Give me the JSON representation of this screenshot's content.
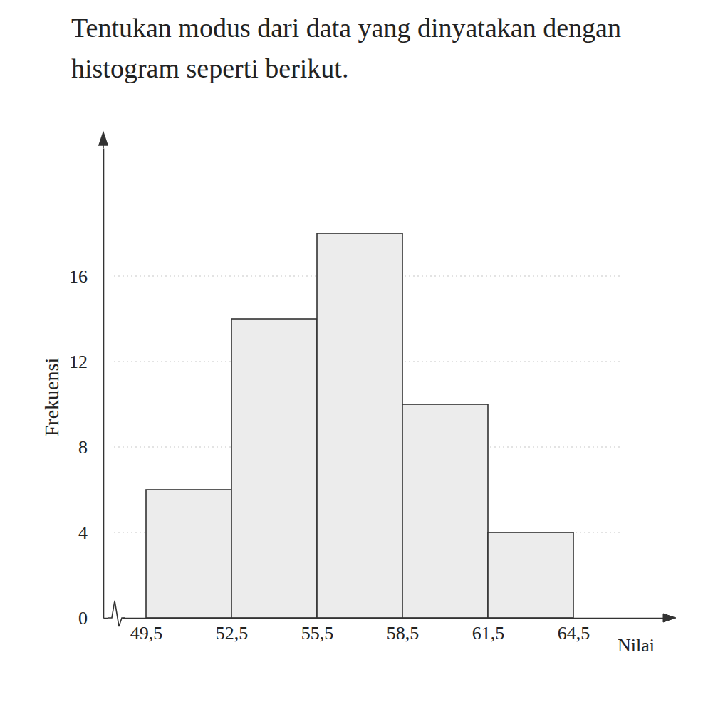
{
  "chart_data": {
    "type": "histogram",
    "title": "Tentukan modus dari data yang dinyatakan dengan histogram seperti berikut.",
    "x_label": "Nilai",
    "y_label": "Frekuensi",
    "bins": [
      49.5,
      52.5,
      55.5,
      58.5,
      61.5,
      64.5
    ],
    "values": [
      6,
      14,
      18,
      10,
      4
    ],
    "color": "#ececec",
    "xlim": [
      48,
      68
    ],
    "xticks": [
      {
        "value": 49.5,
        "label": "49,5"
      },
      {
        "value": 52.5,
        "label": "52,5"
      },
      {
        "value": 55.5,
        "label": "55,5"
      },
      {
        "value": 58.5,
        "label": "58,5"
      },
      {
        "value": 61.5,
        "label": "61,5"
      },
      {
        "value": 64.5,
        "label": "64,5"
      }
    ],
    "ylim": [
      0,
      22
    ],
    "yticks": [
      0,
      4,
      8,
      12,
      16
    ],
    "grid": true
  }
}
